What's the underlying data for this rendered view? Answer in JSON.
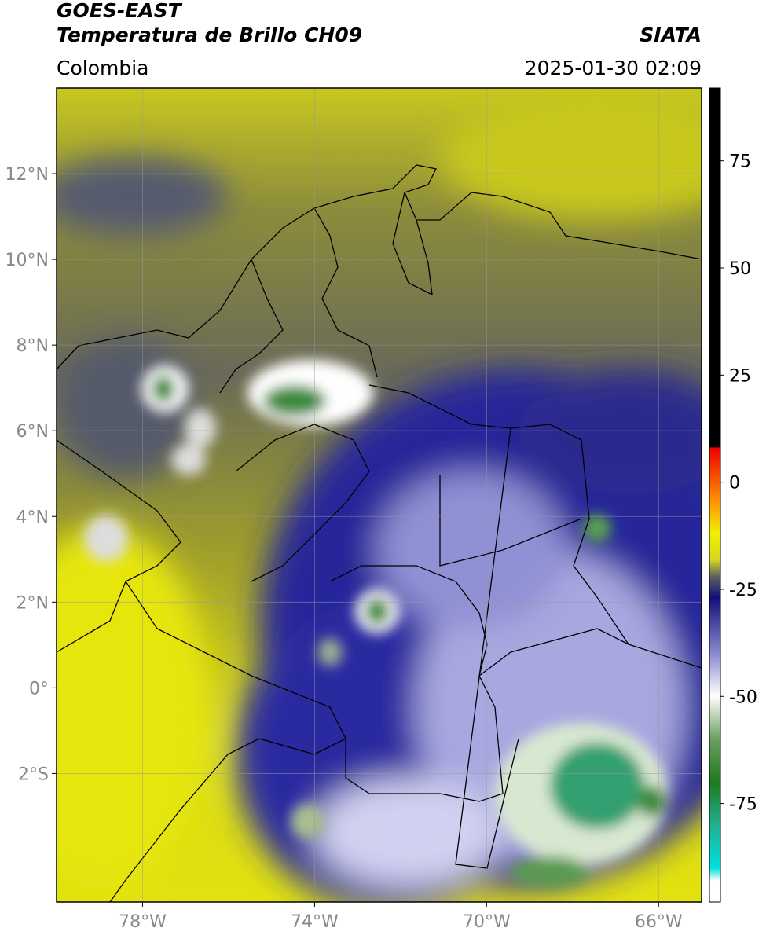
{
  "header": {
    "title": "GOES-EAST",
    "subtitle": "Temperatura de Brillo CH09",
    "source": "SIATA",
    "region": "Colombia",
    "datetime": "2025-01-30 02:09"
  },
  "map": {
    "xlim": [
      -80,
      -65
    ],
    "ylim": [
      -5,
      14
    ],
    "xticks": [
      {
        "value": -78,
        "label": "78°W"
      },
      {
        "value": -74,
        "label": "74°W"
      },
      {
        "value": -70,
        "label": "70°W"
      },
      {
        "value": -66,
        "label": "66°W"
      }
    ],
    "yticks": [
      {
        "value": 12,
        "label": "12°N"
      },
      {
        "value": 10,
        "label": "10°N"
      },
      {
        "value": 8,
        "label": "8°N"
      },
      {
        "value": 6,
        "label": "6°N"
      },
      {
        "value": 4,
        "label": "4°N"
      },
      {
        "value": 2,
        "label": "2°N"
      },
      {
        "value": 0,
        "label": "0°"
      },
      {
        "value": -2,
        "label": "2°S"
      }
    ],
    "grid": true
  },
  "colorbar": {
    "lim": [
      -98,
      92
    ],
    "ticks": [
      75,
      50,
      25,
      0,
      -25,
      -50,
      -75
    ]
  }
}
